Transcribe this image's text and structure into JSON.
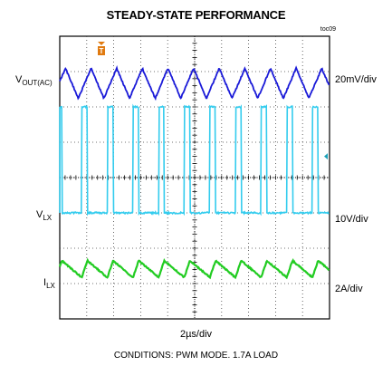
{
  "title": "STEADY-STATE PERFORMANCE",
  "figure_id": "toc09",
  "x_axis_label": "2µs/div",
  "conditions": "CONDITIONS: PWM MODE. 1.7A LOAD",
  "chart_data": {
    "type": "line",
    "title": "STEADY-STATE PERFORMANCE",
    "subtitle": "CONDITIONS: PWM MODE. 1.7A LOAD",
    "xlabel": "2µs/div",
    "x_divisions": 10,
    "y_divisions": 8,
    "grid": true,
    "trigger_marker": "T",
    "series": [
      {
        "label_main": "V",
        "label_sub": "OUT(AC)",
        "scale": "20mV/div",
        "color": "#1a1ad8",
        "waveform": "triangle-ripple",
        "period_us": 1.9,
        "amplitude_mV": 17
      },
      {
        "label_main": "V",
        "label_sub": "LX",
        "scale": "10V/div",
        "color": "#33ccee",
        "waveform": "pulse",
        "period_us": 1.9,
        "high_V": 30,
        "low_V": 0,
        "duty": 0.22
      },
      {
        "label_main": "I",
        "label_sub": "LX",
        "scale": "2A/div",
        "color": "#22cc22",
        "waveform": "sawtooth",
        "period_us": 1.9,
        "ripple_A": 0.8
      }
    ]
  }
}
